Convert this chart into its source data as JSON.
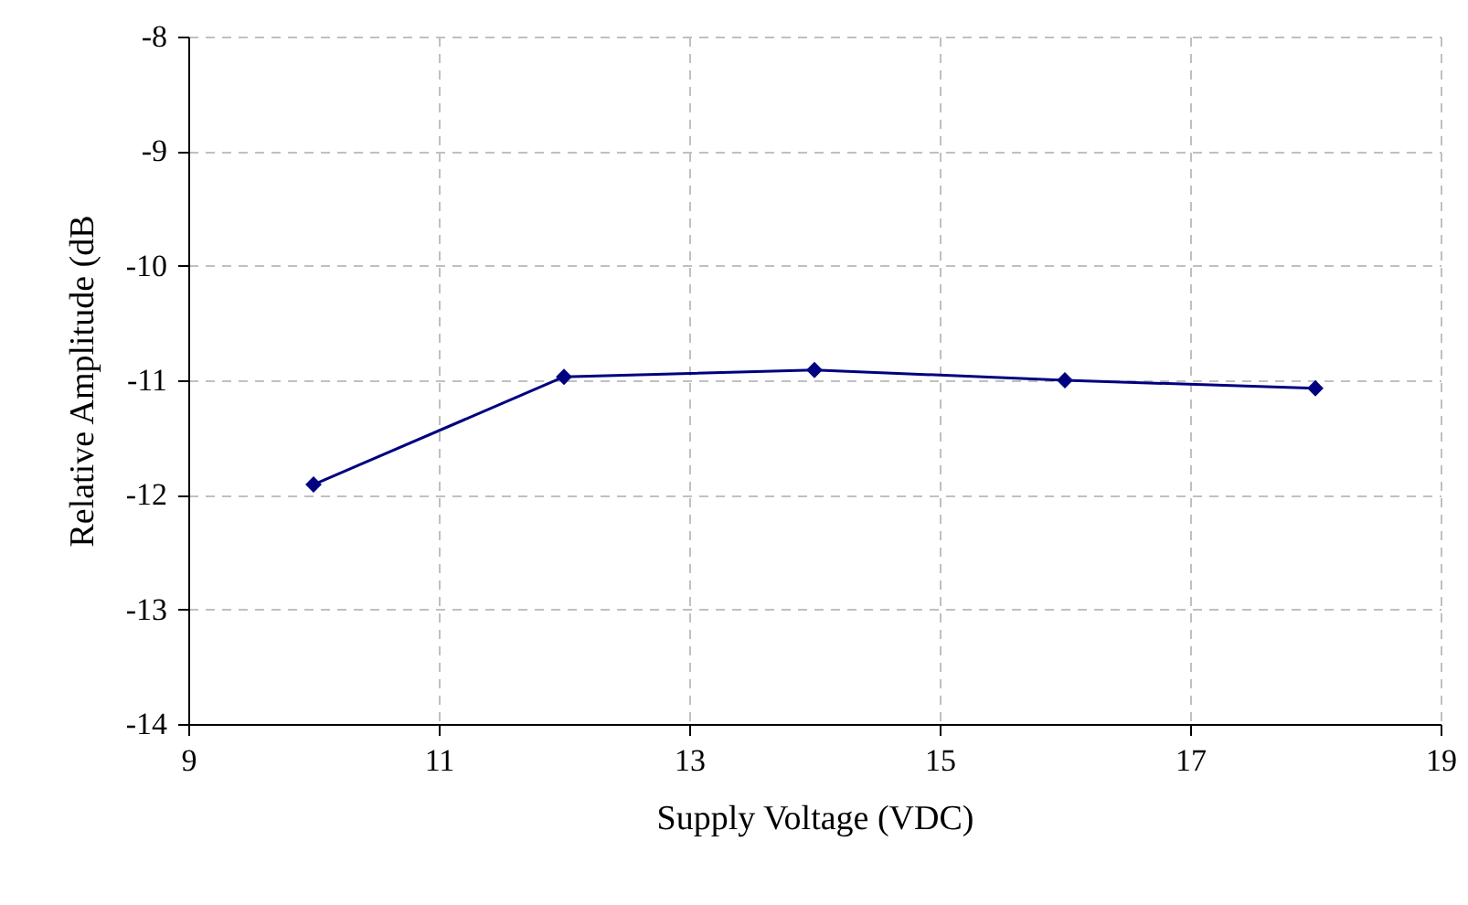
{
  "chart_data": {
    "type": "line",
    "xlabel": "Supply Voltage (VDC)",
    "ylabel": "Relative Amplitude (dB",
    "x": [
      10,
      12,
      14,
      16,
      18
    ],
    "series": [
      {
        "color": "#000080",
        "values": [
          -11.91,
          -10.97,
          -10.91,
          -11.0,
          -11.07
        ]
      }
    ],
    "xlim": [
      9,
      19
    ],
    "xticks": [
      9,
      11,
      13,
      15,
      17,
      19
    ],
    "ylim": [
      -14,
      -8
    ],
    "yticks": [
      -14,
      -13,
      -12,
      -11,
      -10,
      -9,
      -8
    ],
    "grid": true,
    "marker": "diamond",
    "line_style": "solid"
  }
}
